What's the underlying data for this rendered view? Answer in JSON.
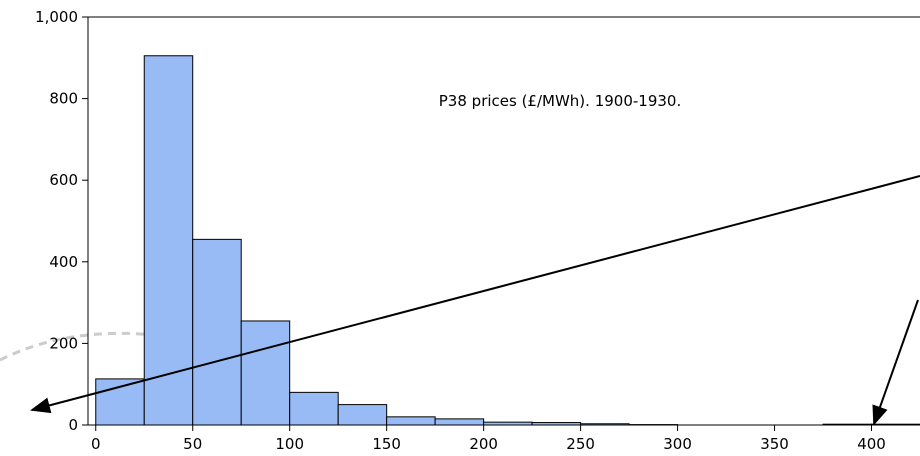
{
  "chart_data": {
    "type": "histogram",
    "annotation": "P38 prices (£/MWh). 1900-1930.",
    "bins": [
      0,
      25,
      50,
      75,
      100,
      125,
      150,
      175,
      200,
      225,
      250,
      275,
      300,
      325,
      350,
      375,
      400,
      425
    ],
    "counts": [
      113,
      905,
      455,
      255,
      80,
      50,
      20,
      15,
      7,
      6,
      3,
      1,
      0,
      0,
      0,
      2,
      2
    ],
    "color": "#99bbf5",
    "xlim": [
      -4,
      425
    ],
    "xticks": [
      0,
      50,
      100,
      150,
      200,
      250,
      300,
      350,
      400
    ],
    "ylim": [
      0,
      1000
    ],
    "yticks": [
      0,
      200,
      400,
      600,
      800,
      {
        "value": 1000,
        "label": "1,000"
      }
    ]
  }
}
